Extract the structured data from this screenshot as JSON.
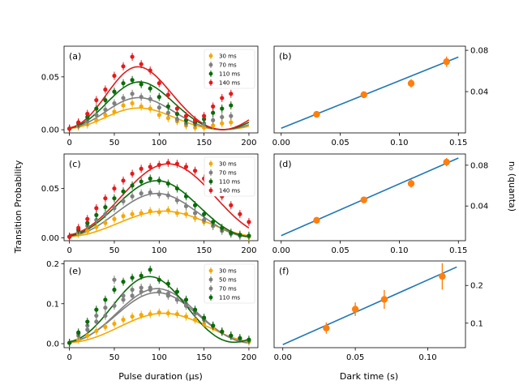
{
  "figure": {
    "ylabel_left": "Transition Probability",
    "xlabel_left": "Pulse duration (μs)",
    "xlabel_right": "Dark time (s)",
    "ylabel_right": "n₀ (quanta)"
  },
  "colors": {
    "30 ms": "#f5a800",
    "50 ms": "#808080",
    "70 ms": "#808080",
    "110 ms": "#0b6b0b",
    "140 ms": "#e41a1c",
    "fit": "#1f77b4",
    "orange": "#ff7f0e"
  },
  "chart_data": [
    {
      "type": "scatter",
      "panel": "(a)",
      "xlim": [
        -6,
        210
      ],
      "ylim": [
        -0.003,
        0.079
      ],
      "xticks": [
        0,
        50,
        100,
        150,
        200
      ],
      "yticks": [
        0.0,
        0.05
      ],
      "ytick_labels": [
        "0.00",
        "0.05"
      ],
      "legend_position": "top-right",
      "series": [
        {
          "name": "30 ms",
          "color_key": "30 ms",
          "amp": 0.021,
          "center": 70,
          "sigma": 34,
          "period": 170,
          "x": [
            0,
            10,
            20,
            30,
            40,
            50,
            60,
            70,
            80,
            90,
            100,
            110,
            120,
            130,
            140,
            150,
            160,
            170,
            180
          ],
          "y": [
            0.001,
            0.003,
            0.005,
            0.009,
            0.014,
            0.017,
            0.023,
            0.025,
            0.022,
            0.02,
            0.014,
            0.011,
            0.008,
            0.004,
            0.002,
            0.002,
            0.004,
            0.006,
            0.007
          ]
        },
        {
          "name": "70 ms",
          "color_key": "70 ms",
          "amp": 0.031,
          "center": 70,
          "sigma": 33,
          "period": 170,
          "x": [
            0,
            10,
            20,
            30,
            40,
            50,
            60,
            70,
            80,
            90,
            100,
            110,
            120,
            130,
            140,
            150,
            160,
            170,
            180
          ],
          "y": [
            0.001,
            0.004,
            0.008,
            0.014,
            0.019,
            0.025,
            0.03,
            0.034,
            0.031,
            0.029,
            0.021,
            0.016,
            0.01,
            0.006,
            0.005,
            0.006,
            0.009,
            0.012,
            0.013
          ]
        },
        {
          "name": "110 ms",
          "color_key": "110 ms",
          "amp": 0.046,
          "center": 72,
          "sigma": 32,
          "period": 170,
          "x": [
            0,
            10,
            20,
            30,
            40,
            50,
            60,
            70,
            80,
            90,
            100,
            110,
            120,
            130,
            140,
            150,
            160,
            170,
            180
          ],
          "y": [
            0.001,
            0.006,
            0.012,
            0.02,
            0.028,
            0.036,
            0.044,
            0.047,
            0.043,
            0.039,
            0.031,
            0.022,
            0.015,
            0.009,
            0.007,
            0.01,
            0.016,
            0.02,
            0.023
          ]
        },
        {
          "name": "140 ms",
          "color_key": "140 ms",
          "amp": 0.061,
          "center": 70,
          "sigma": 30,
          "period": 170,
          "x": [
            0,
            10,
            20,
            30,
            40,
            50,
            60,
            70,
            80,
            90,
            100,
            110,
            120,
            130,
            140,
            150,
            160,
            170,
            180
          ],
          "y": [
            0.001,
            0.007,
            0.015,
            0.028,
            0.038,
            0.051,
            0.06,
            0.069,
            0.062,
            0.056,
            0.044,
            0.033,
            0.02,
            0.013,
            0.009,
            0.013,
            0.022,
            0.03,
            0.034
          ]
        }
      ]
    },
    {
      "type": "scatter",
      "panel": "(b)",
      "xlim": [
        -0.006,
        0.156
      ],
      "ylim": [
        0.0,
        0.084
      ],
      "xticks": [
        0.0,
        0.05,
        0.1,
        0.15
      ],
      "xtick_labels": [
        "0.00",
        "0.05",
        "0.10",
        "0.15"
      ],
      "yticks": [
        0.04,
        0.08
      ],
      "ytick_labels": [
        "0.04",
        "0.08"
      ],
      "y_axis_side": "right",
      "fit_line": {
        "x": [
          0.0,
          0.15
        ],
        "y": [
          0.0045,
          0.0735
        ]
      },
      "x": [
        0.03,
        0.07,
        0.11,
        0.14
      ],
      "y": [
        0.018,
        0.037,
        0.048,
        0.069
      ],
      "yerr": [
        0.0025,
        0.003,
        0.004,
        0.005
      ]
    },
    {
      "type": "scatter",
      "panel": "(c)",
      "xlim": [
        -6,
        210
      ],
      "ylim": [
        -0.003,
        0.085
      ],
      "xticks": [
        0,
        50,
        100,
        150,
        200
      ],
      "yticks": [
        0.0,
        0.05
      ],
      "ytick_labels": [
        "0.00",
        "0.05"
      ],
      "legend_position": "top-right",
      "series": [
        {
          "name": "30 ms",
          "color_key": "30 ms",
          "amp": 0.027,
          "center": 105,
          "sigma": 48,
          "period": 210,
          "x": [
            0,
            10,
            20,
            30,
            40,
            50,
            60,
            70,
            80,
            90,
            100,
            110,
            120,
            130,
            140,
            150,
            160,
            170,
            180,
            190,
            200
          ],
          "y": [
            0.001,
            0.004,
            0.007,
            0.011,
            0.015,
            0.019,
            0.022,
            0.024,
            0.025,
            0.027,
            0.026,
            0.028,
            0.025,
            0.024,
            0.02,
            0.016,
            0.012,
            0.008,
            0.005,
            0.003,
            0.001
          ]
        },
        {
          "name": "70 ms",
          "color_key": "70 ms",
          "amp": 0.045,
          "center": 95,
          "sigma": 42,
          "period": 200,
          "x": [
            0,
            10,
            20,
            30,
            40,
            50,
            60,
            70,
            80,
            90,
            100,
            110,
            120,
            130,
            140,
            150,
            160,
            170,
            180,
            190,
            200
          ],
          "y": [
            0.001,
            0.006,
            0.012,
            0.018,
            0.024,
            0.03,
            0.037,
            0.042,
            0.045,
            0.046,
            0.044,
            0.043,
            0.038,
            0.032,
            0.025,
            0.018,
            0.012,
            0.007,
            0.004,
            0.002,
            0.002
          ]
        },
        {
          "name": "110 ms",
          "color_key": "110 ms",
          "amp": 0.058,
          "center": 95,
          "sigma": 42,
          "period": 200,
          "x": [
            0,
            10,
            20,
            30,
            40,
            50,
            60,
            70,
            80,
            90,
            100,
            110,
            120,
            130,
            140,
            150,
            160,
            170,
            180,
            190,
            200
          ],
          "y": [
            0.001,
            0.008,
            0.015,
            0.023,
            0.031,
            0.04,
            0.047,
            0.053,
            0.057,
            0.06,
            0.058,
            0.055,
            0.05,
            0.042,
            0.033,
            0.024,
            0.016,
            0.01,
            0.005,
            0.003,
            0.002
          ]
        },
        {
          "name": "140 ms",
          "color_key": "140 ms",
          "amp": 0.075,
          "center": 110,
          "sigma": 50,
          "period": 220,
          "x": [
            0,
            10,
            20,
            30,
            40,
            50,
            60,
            70,
            80,
            90,
            100,
            110,
            120,
            130,
            140,
            150,
            160,
            170,
            180,
            190,
            200
          ],
          "y": [
            0.001,
            0.01,
            0.019,
            0.03,
            0.04,
            0.05,
            0.058,
            0.065,
            0.07,
            0.072,
            0.074,
            0.076,
            0.075,
            0.072,
            0.068,
            0.06,
            0.052,
            0.042,
            0.033,
            0.024,
            0.016
          ]
        }
      ]
    },
    {
      "type": "scatter",
      "panel": "(d)",
      "xlim": [
        -0.006,
        0.156
      ],
      "ylim": [
        0.006,
        0.091
      ],
      "xticks": [
        0.0,
        0.05,
        0.1,
        0.15
      ],
      "xtick_labels": [
        "0.00",
        "0.05",
        "0.10",
        "0.15"
      ],
      "yticks": [
        0.04,
        0.08
      ],
      "ytick_labels": [
        "0.04",
        "0.08"
      ],
      "y_axis_side": "right",
      "fit_line": {
        "x": [
          0.0,
          0.15
        ],
        "y": [
          0.011,
          0.087
        ]
      },
      "x": [
        0.03,
        0.07,
        0.11,
        0.14
      ],
      "y": [
        0.026,
        0.046,
        0.062,
        0.083
      ],
      "yerr": [
        0.0025,
        0.003,
        0.004,
        0.004
      ]
    },
    {
      "type": "scatter",
      "panel": "(e)",
      "xlim": [
        -6,
        210
      ],
      "ylim": [
        -0.01,
        0.207
      ],
      "xticks": [
        0,
        50,
        100,
        150,
        200
      ],
      "yticks": [
        0.0,
        0.1,
        0.2
      ],
      "ytick_labels": [
        "0.0",
        "0.1",
        "0.2"
      ],
      "legend_position": "top-right",
      "series": [
        {
          "name": "30 ms",
          "color_key": "30 ms",
          "amp": 0.076,
          "center": 105,
          "sigma": 46,
          "period": 210,
          "x": [
            0,
            10,
            20,
            30,
            40,
            50,
            60,
            70,
            80,
            90,
            100,
            110,
            120,
            130,
            140,
            150,
            160,
            170,
            180,
            190,
            200
          ],
          "y": [
            0.002,
            0.01,
            0.02,
            0.032,
            0.042,
            0.05,
            0.06,
            0.068,
            0.072,
            0.074,
            0.078,
            0.076,
            0.074,
            0.068,
            0.06,
            0.05,
            0.04,
            0.03,
            0.02,
            0.012,
            0.005
          ]
        },
        {
          "name": "50 ms",
          "color_key": "50 ms",
          "amp": 0.128,
          "center": 95,
          "sigma": 42,
          "period": 200,
          "x": [
            0,
            10,
            20,
            30,
            40,
            50,
            60,
            70,
            80,
            90,
            100,
            110,
            120,
            130,
            140,
            150,
            160,
            170,
            180,
            190,
            200
          ],
          "y": [
            0.002,
            0.02,
            0.035,
            0.055,
            0.07,
            0.095,
            0.11,
            0.12,
            0.13,
            0.14,
            0.13,
            0.12,
            0.11,
            0.1,
            0.08,
            0.06,
            0.045,
            0.03,
            0.02,
            0.012,
            0.008
          ]
        },
        {
          "name": "70 ms",
          "color_key": "70 ms",
          "amp": 0.138,
          "center": 95,
          "sigma": 40,
          "period": 200,
          "x": [
            0,
            10,
            20,
            30,
            40,
            50,
            60,
            70,
            80,
            90,
            100,
            110,
            120,
            130,
            140,
            150,
            160,
            170,
            180,
            190,
            200
          ],
          "y": [
            0.002,
            0.025,
            0.045,
            0.07,
            0.09,
            0.16,
            0.12,
            0.135,
            0.14,
            0.135,
            0.13,
            0.125,
            0.11,
            0.095,
            0.075,
            0.06,
            0.045,
            0.03,
            0.02,
            0.012,
            0.008
          ]
        },
        {
          "name": "110 ms",
          "color_key": "110 ms",
          "amp": 0.168,
          "center": 88,
          "sigma": 38,
          "period": 180,
          "x": [
            0,
            10,
            20,
            30,
            40,
            50,
            60,
            70,
            80,
            90,
            100,
            110,
            120,
            130,
            140,
            150,
            160,
            170,
            180,
            190,
            200
          ],
          "y": [
            0.002,
            0.028,
            0.055,
            0.085,
            0.11,
            0.135,
            0.155,
            0.165,
            0.17,
            0.185,
            0.16,
            0.15,
            0.13,
            0.11,
            0.085,
            0.065,
            0.045,
            0.03,
            0.02,
            0.014,
            0.01
          ]
        }
      ]
    },
    {
      "type": "scatter",
      "panel": "(f)",
      "xlim": [
        -0.006,
        0.126
      ],
      "ylim": [
        0.035,
        0.265
      ],
      "xticks": [
        0.0,
        0.05,
        0.1
      ],
      "xtick_labels": [
        "0.00",
        "0.05",
        "0.10"
      ],
      "yticks": [
        0.1,
        0.2
      ],
      "ytick_labels": [
        "0.1",
        "0.2"
      ],
      "y_axis_side": "right",
      "fit_line": {
        "x": [
          0.0,
          0.12
        ],
        "y": [
          0.043,
          0.249
        ]
      },
      "x": [
        0.03,
        0.05,
        0.07,
        0.11
      ],
      "y": [
        0.087,
        0.137,
        0.163,
        0.224
      ],
      "yerr": [
        0.015,
        0.018,
        0.025,
        0.035
      ]
    }
  ]
}
